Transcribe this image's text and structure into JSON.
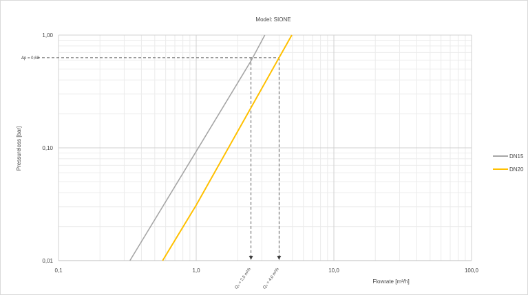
{
  "chart_data": {
    "type": "line",
    "title": "Model: SIONE",
    "xlabel": "Flowrate [m³/h]",
    "ylabel": "Pressureloss [bar]",
    "x_scale": "log",
    "y_scale": "log",
    "xlim": [
      0.1,
      100.0
    ],
    "ylim": [
      0.01,
      1.0
    ],
    "x_ticks": [
      0.1,
      1.0,
      10.0,
      100.0
    ],
    "x_tick_labels": [
      "0,1",
      "1,0",
      "10,0",
      "100,0"
    ],
    "y_ticks": [
      0.01,
      0.1,
      1.0
    ],
    "y_tick_labels": [
      "0,01",
      "0,10",
      "1,00"
    ],
    "grid": true,
    "legend_position": "right",
    "series": [
      {
        "name": "DN15",
        "color": "#a6a6a6",
        "x": [
          0.33,
          1.0,
          2.5,
          3.15
        ],
        "y": [
          0.01,
          0.093,
          0.59,
          1.0
        ]
      },
      {
        "name": "DN20",
        "color": "#ffc000",
        "x": [
          0.57,
          1.0,
          4.0,
          4.95
        ],
        "y": [
          0.01,
          0.031,
          0.63,
          1.0
        ]
      }
    ],
    "annotations": {
      "dp_label": "Δp = 0,63",
      "dp_value": 0.63,
      "q_markers": [
        {
          "label": "Q₀ = 2,5 m³/h",
          "x": 2.5
        },
        {
          "label": "Q₀ = 4,0 m³/h",
          "x": 4.0
        }
      ]
    }
  }
}
